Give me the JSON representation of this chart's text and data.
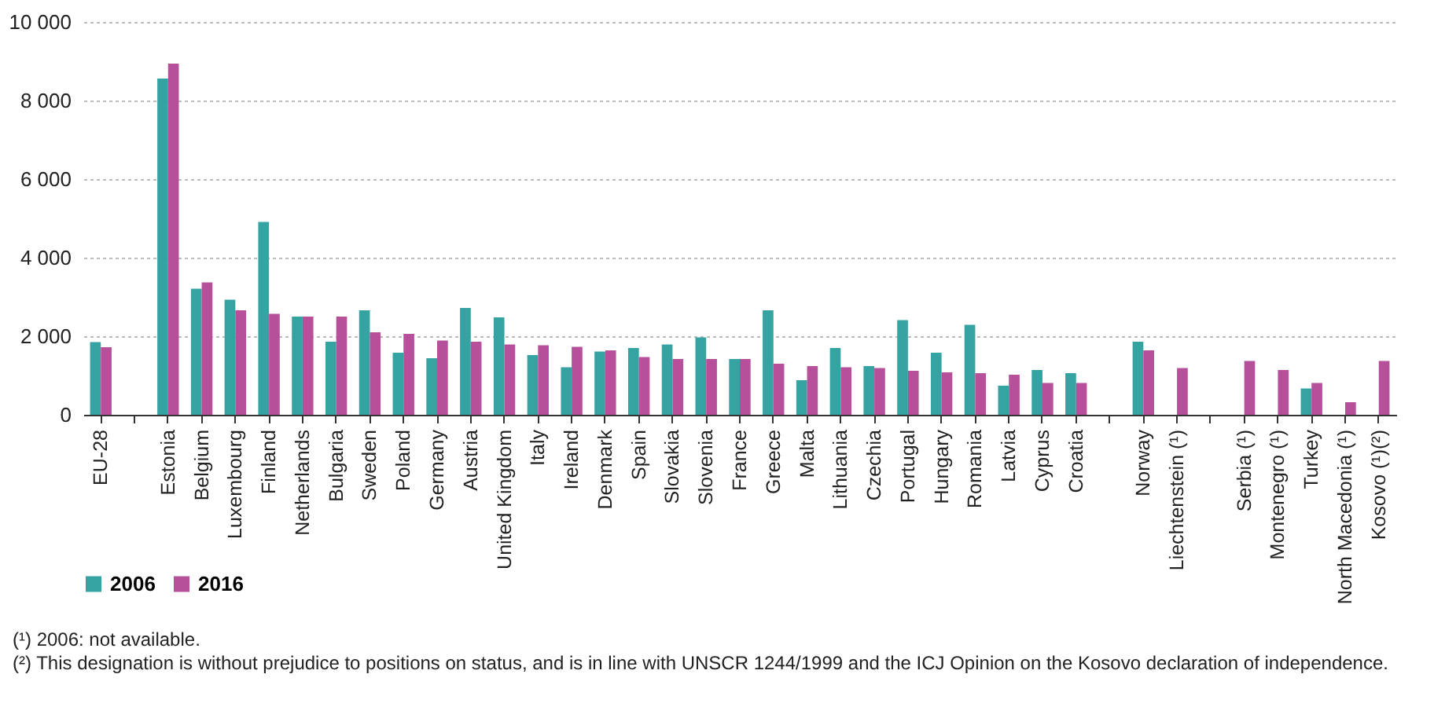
{
  "chart_data": {
    "type": "bar",
    "categories": [
      "EU-28",
      null,
      "Estonia",
      "Belgium",
      "Luxembourg",
      "Finland",
      "Netherlands",
      "Bulgaria",
      "Sweden",
      "Poland",
      "Germany",
      "Austria",
      "United Kingdom",
      "Italy",
      "Ireland",
      "Denmark",
      "Spain",
      "Slovakia",
      "Slovenia",
      "France",
      "Greece",
      "Malta",
      "Lithuania",
      "Czechia",
      "Portugal",
      "Hungary",
      "Romania",
      "Latvia",
      "Cyprus",
      "Croatia",
      null,
      "Norway",
      "Liechtenstein (¹)",
      null,
      "Serbia (¹)",
      "Montenegro (¹)",
      "Turkey",
      "North Macedonia (¹)",
      "Kosovo (¹)(²)"
    ],
    "series": [
      {
        "name": "2006",
        "color": "#36a3a3",
        "values": [
          1850,
          null,
          8560,
          3210,
          2930,
          4910,
          2500,
          1860,
          2660,
          1580,
          1440,
          2720,
          2480,
          1520,
          1210,
          1610,
          1700,
          1790,
          1970,
          1420,
          2660,
          880,
          1700,
          1240,
          2410,
          1580,
          2290,
          740,
          1140,
          1060,
          null,
          1860,
          null,
          null,
          null,
          null,
          670,
          null,
          null
        ]
      },
      {
        "name": "2016",
        "color": "#b7509a",
        "values": [
          1720,
          null,
          8940,
          3370,
          2660,
          2570,
          2500,
          2500,
          2100,
          2060,
          1890,
          1860,
          1790,
          1770,
          1730,
          1640,
          1470,
          1420,
          1420,
          1420,
          1300,
          1240,
          1210,
          1190,
          1120,
          1080,
          1060,
          1020,
          810,
          810,
          null,
          1640,
          1190,
          null,
          1370,
          1140,
          810,
          320,
          1370
        ]
      }
    ],
    "ylim": [
      0,
      10000
    ],
    "yticks": [
      0,
      {
        "value": 2000,
        "label": "2 000"
      },
      {
        "value": 4000,
        "label": "4 000"
      },
      {
        "value": 6000,
        "label": "6 000"
      },
      {
        "value": 8000,
        "label": "8 000"
      },
      {
        "value": 10000,
        "label": "10 000"
      }
    ],
    "grid": "y",
    "legend": "bottom",
    "annotations": [
      "(¹) 2006: not available.",
      "(²) This designation is without prejudice to positions on status, and is in line with UNSCR 1244/1999 and the ICJ Opinion on the Kosovo declaration of independence."
    ]
  }
}
